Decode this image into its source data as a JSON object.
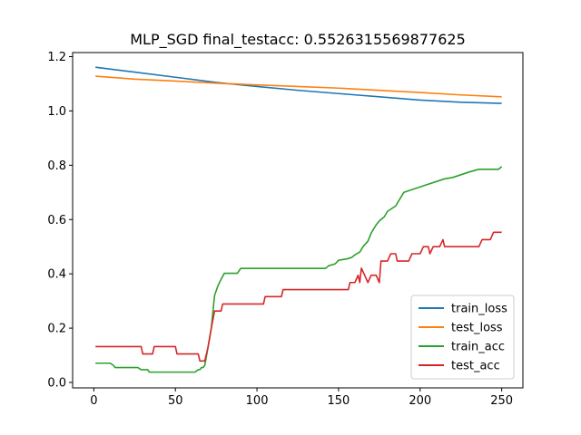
{
  "chart_data": {
    "type": "line",
    "title": "MLP_SGD  final_testacc: 0.5526315569877625",
    "xlabel": "",
    "ylabel": "",
    "xlim": [
      -13,
      263
    ],
    "ylim": [
      -0.02,
      1.215
    ],
    "xticks": [
      0,
      50,
      100,
      150,
      200,
      250
    ],
    "yticks": [
      0.0,
      0.2,
      0.4,
      0.6,
      0.8,
      1.0,
      1.2
    ],
    "ytick_labels": [
      "0.0",
      "0.2",
      "0.4",
      "0.6",
      "0.8",
      "1.0",
      "1.2"
    ],
    "grid": false,
    "legend_position": "lower right",
    "series": [
      {
        "name": "train_loss",
        "color": "#1f77b4",
        "points": [
          [
            1,
            1.161
          ],
          [
            25,
            1.143
          ],
          [
            50,
            1.124
          ],
          [
            75,
            1.105
          ],
          [
            100,
            1.09
          ],
          [
            125,
            1.076
          ],
          [
            150,
            1.064
          ],
          [
            175,
            1.052
          ],
          [
            200,
            1.04
          ],
          [
            225,
            1.032
          ],
          [
            250,
            1.028
          ]
        ]
      },
      {
        "name": "test_loss",
        "color": "#ff7f0e",
        "points": [
          [
            1,
            1.128
          ],
          [
            25,
            1.117
          ],
          [
            50,
            1.11
          ],
          [
            75,
            1.102
          ],
          [
            100,
            1.096
          ],
          [
            125,
            1.09
          ],
          [
            150,
            1.084
          ],
          [
            175,
            1.076
          ],
          [
            200,
            1.068
          ],
          [
            225,
            1.059
          ],
          [
            250,
            1.052
          ]
        ]
      },
      {
        "name": "train_acc",
        "color": "#2ca02c",
        "points": [
          [
            1,
            0.071
          ],
          [
            10,
            0.071
          ],
          [
            12,
            0.063
          ],
          [
            13,
            0.055
          ],
          [
            27,
            0.055
          ],
          [
            29,
            0.047
          ],
          [
            33,
            0.047
          ],
          [
            34,
            0.038
          ],
          [
            62,
            0.038
          ],
          [
            64,
            0.047
          ],
          [
            65,
            0.047
          ],
          [
            66,
            0.055
          ],
          [
            67,
            0.055
          ],
          [
            68,
            0.063
          ],
          [
            70,
            0.13
          ],
          [
            72,
            0.2
          ],
          [
            74,
            0.32
          ],
          [
            76,
            0.355
          ],
          [
            78,
            0.38
          ],
          [
            80,
            0.402
          ],
          [
            88,
            0.402
          ],
          [
            90,
            0.42
          ],
          [
            142,
            0.42
          ],
          [
            144,
            0.43
          ],
          [
            148,
            0.437
          ],
          [
            150,
            0.45
          ],
          [
            155,
            0.455
          ],
          [
            158,
            0.46
          ],
          [
            160,
            0.47
          ],
          [
            163,
            0.48
          ],
          [
            165,
            0.5
          ],
          [
            168,
            0.52
          ],
          [
            170,
            0.55
          ],
          [
            173,
            0.58
          ],
          [
            175,
            0.595
          ],
          [
            178,
            0.61
          ],
          [
            180,
            0.63
          ],
          [
            185,
            0.65
          ],
          [
            188,
            0.68
          ],
          [
            190,
            0.7
          ],
          [
            195,
            0.71
          ],
          [
            200,
            0.72
          ],
          [
            205,
            0.73
          ],
          [
            210,
            0.74
          ],
          [
            215,
            0.75
          ],
          [
            220,
            0.755
          ],
          [
            225,
            0.765
          ],
          [
            230,
            0.775
          ],
          [
            236,
            0.785
          ],
          [
            248,
            0.785
          ],
          [
            250,
            0.795
          ]
        ]
      },
      {
        "name": "test_acc",
        "color": "#d62728",
        "points": [
          [
            1,
            0.132
          ],
          [
            29,
            0.132
          ],
          [
            30,
            0.105
          ],
          [
            36,
            0.105
          ],
          [
            37,
            0.132
          ],
          [
            50,
            0.132
          ],
          [
            51,
            0.105
          ],
          [
            64,
            0.105
          ],
          [
            65,
            0.079
          ],
          [
            68,
            0.079
          ],
          [
            70,
            0.13
          ],
          [
            72,
            0.2
          ],
          [
            74,
            0.263
          ],
          [
            78,
            0.263
          ],
          [
            79,
            0.289
          ],
          [
            104,
            0.289
          ],
          [
            105,
            0.316
          ],
          [
            115,
            0.316
          ],
          [
            116,
            0.342
          ],
          [
            156,
            0.342
          ],
          [
            157,
            0.368
          ],
          [
            160,
            0.368
          ],
          [
            162,
            0.395
          ],
          [
            163,
            0.368
          ],
          [
            164,
            0.421
          ],
          [
            166,
            0.395
          ],
          [
            168,
            0.368
          ],
          [
            170,
            0.395
          ],
          [
            173,
            0.395
          ],
          [
            175,
            0.368
          ],
          [
            176,
            0.447
          ],
          [
            180,
            0.447
          ],
          [
            182,
            0.474
          ],
          [
            185,
            0.474
          ],
          [
            186,
            0.447
          ],
          [
            193,
            0.447
          ],
          [
            195,
            0.474
          ],
          [
            200,
            0.474
          ],
          [
            202,
            0.5
          ],
          [
            205,
            0.5
          ],
          [
            206,
            0.474
          ],
          [
            208,
            0.5
          ],
          [
            212,
            0.5
          ],
          [
            214,
            0.526
          ],
          [
            215,
            0.5
          ],
          [
            236,
            0.5
          ],
          [
            238,
            0.526
          ],
          [
            243,
            0.526
          ],
          [
            245,
            0.553
          ],
          [
            250,
            0.553
          ]
        ]
      }
    ]
  }
}
